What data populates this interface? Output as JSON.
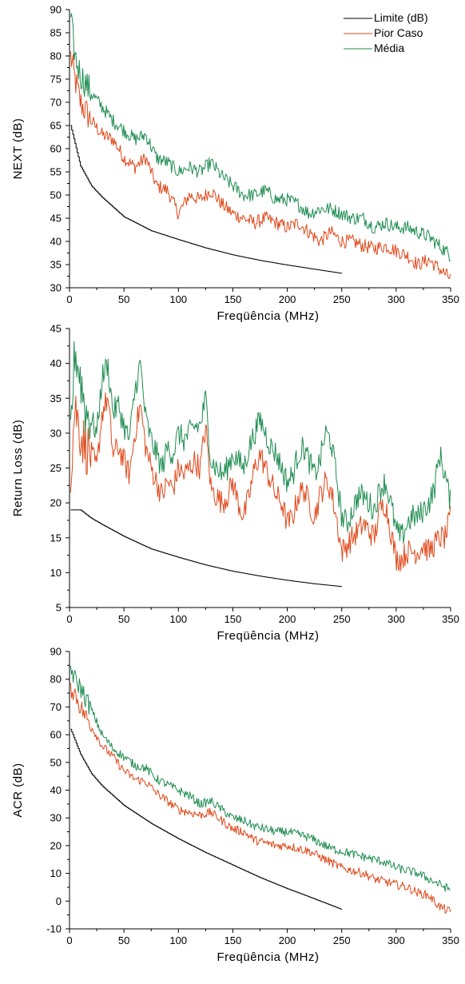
{
  "colors": {
    "limite": "#000000",
    "pior": "#e0481a",
    "media": "#1e8c50",
    "axis": "#000000"
  },
  "legend": {
    "placement": "top-right",
    "items": [
      "Limite (dB)",
      "Pior Caso",
      "Média"
    ]
  },
  "chart_data": [
    {
      "type": "line",
      "title": "",
      "xlabel": "Freqüência (MHz)",
      "ylabel": "NEXT (dB)",
      "xlim": [
        0,
        350
      ],
      "ylim": [
        30,
        90
      ],
      "xticks": [
        "0",
        "50",
        "100",
        "150",
        "200",
        "250",
        "300",
        "350"
      ],
      "yticks": [
        "30",
        "35",
        "40",
        "45",
        "50",
        "55",
        "60",
        "65",
        "70",
        "75",
        "80",
        "85",
        "90"
      ],
      "grid": false,
      "series": [
        {
          "name": "Limite (dB)",
          "x": [
            1,
            10,
            20,
            30,
            50,
            75,
            100,
            125,
            150,
            175,
            200,
            225,
            250
          ],
          "y": [
            65,
            56.3,
            52,
            49.5,
            45.3,
            42.3,
            40.4,
            38.6,
            37.1,
            35.9,
            34.9,
            34,
            33.1
          ]
        },
        {
          "name": "Pior Caso",
          "x": [
            1,
            5,
            10,
            20,
            30,
            40,
            50,
            60,
            70,
            80,
            90,
            100,
            110,
            120,
            130,
            140,
            150,
            160,
            170,
            180,
            190,
            200,
            210,
            220,
            230,
            240,
            250,
            260,
            270,
            280,
            290,
            300,
            310,
            320,
            330,
            340,
            350
          ],
          "y": [
            80,
            75,
            70,
            66,
            63,
            62,
            58,
            56,
            58,
            52,
            51,
            46,
            50,
            49,
            51,
            48,
            46,
            45,
            44,
            45,
            44,
            43,
            44,
            42,
            40,
            42,
            40,
            40,
            39,
            38.5,
            39,
            38,
            37,
            35,
            36,
            34,
            32
          ]
        },
        {
          "name": "Média",
          "x": [
            1,
            5,
            10,
            20,
            30,
            40,
            50,
            60,
            70,
            80,
            90,
            100,
            110,
            120,
            130,
            140,
            150,
            160,
            170,
            180,
            190,
            200,
            210,
            220,
            230,
            240,
            250,
            260,
            270,
            280,
            290,
            300,
            310,
            320,
            330,
            340,
            350
          ],
          "y": [
            88,
            80,
            76,
            72,
            69,
            66,
            64,
            62,
            63,
            58,
            57,
            55,
            56,
            55,
            57,
            54,
            52,
            50,
            50,
            51,
            49,
            49,
            48,
            46,
            47,
            47,
            46,
            45,
            45,
            43,
            44,
            43,
            43,
            42,
            41,
            39,
            37
          ]
        }
      ]
    },
    {
      "type": "line",
      "title": "",
      "xlabel": "Freqüência (MHz)",
      "ylabel": "Return Loss (dB)",
      "xlim": [
        0,
        350
      ],
      "ylim": [
        5,
        45
      ],
      "xticks": [
        "0",
        "50",
        "100",
        "150",
        "200",
        "250",
        "300",
        "350"
      ],
      "yticks": [
        "5",
        "10",
        "15",
        "20",
        "25",
        "30",
        "35",
        "40",
        "45"
      ],
      "grid": false,
      "series": [
        {
          "name": "Limite (dB)",
          "x": [
            1,
            10,
            20,
            30,
            50,
            75,
            100,
            125,
            150,
            175,
            200,
            225,
            250
          ],
          "y": [
            19,
            19,
            17.8,
            16.9,
            15.2,
            13.4,
            12.2,
            11.1,
            10.2,
            9.5,
            8.9,
            8.4,
            8
          ]
        },
        {
          "name": "Pior Caso",
          "x": [
            1,
            5,
            10,
            15,
            20,
            25,
            30,
            35,
            40,
            45,
            50,
            55,
            60,
            65,
            70,
            75,
            80,
            85,
            90,
            95,
            100,
            105,
            110,
            115,
            120,
            125,
            130,
            135,
            140,
            145,
            150,
            155,
            160,
            165,
            170,
            175,
            180,
            185,
            190,
            195,
            200,
            205,
            210,
            215,
            220,
            225,
            230,
            235,
            240,
            245,
            250,
            255,
            260,
            265,
            270,
            275,
            280,
            285,
            290,
            295,
            300,
            305,
            310,
            315,
            320,
            325,
            330,
            335,
            340,
            345,
            350
          ],
          "y": [
            24,
            34,
            30,
            28,
            27,
            25,
            33,
            35,
            27,
            28,
            26,
            24,
            30,
            34,
            28,
            25,
            23,
            21,
            23,
            22,
            25,
            24,
            25,
            26,
            25,
            31,
            22,
            21,
            20,
            21,
            23,
            20,
            18,
            21,
            25,
            27,
            25,
            23,
            21,
            20,
            17,
            18,
            21,
            22,
            20,
            18,
            21,
            23,
            22,
            18,
            13,
            14,
            15,
            16,
            17,
            16,
            15,
            19,
            20,
            16,
            12,
            12,
            13,
            13,
            13,
            14,
            13,
            14,
            15,
            15,
            18
          ]
        },
        {
          "name": "Média",
          "x": [
            1,
            5,
            10,
            15,
            20,
            25,
            30,
            35,
            40,
            45,
            50,
            55,
            60,
            65,
            70,
            75,
            80,
            85,
            90,
            95,
            100,
            105,
            110,
            115,
            120,
            125,
            130,
            135,
            140,
            145,
            150,
            155,
            160,
            165,
            170,
            175,
            180,
            185,
            190,
            195,
            200,
            205,
            210,
            215,
            220,
            225,
            230,
            235,
            240,
            245,
            250,
            255,
            260,
            265,
            270,
            275,
            280,
            285,
            290,
            295,
            300,
            305,
            310,
            315,
            320,
            325,
            330,
            335,
            340,
            345,
            350
          ],
          "y": [
            30,
            42,
            38,
            33,
            32,
            30,
            38,
            40,
            33,
            34,
            31,
            29,
            36,
            40,
            32,
            29,
            27,
            25,
            28,
            27,
            30,
            29,
            30,
            31,
            31,
            35,
            26,
            25,
            24,
            25,
            27,
            26,
            25,
            28,
            30,
            32,
            30,
            28,
            27,
            25,
            23,
            24,
            27,
            28,
            26,
            24,
            26,
            30,
            29,
            24,
            18,
            17,
            19,
            21,
            21,
            20,
            19,
            22,
            23,
            20,
            16,
            15,
            17,
            18,
            18,
            19,
            20,
            22,
            27,
            24,
            20
          ]
        }
      ]
    },
    {
      "type": "line",
      "title": "",
      "xlabel": "Freqüência (MHz)",
      "ylabel": "ACR (dB)",
      "xlim": [
        0,
        350
      ],
      "ylim": [
        -10,
        90
      ],
      "xticks": [
        "0",
        "50",
        "100",
        "150",
        "200",
        "250",
        "300",
        "350"
      ],
      "yticks": [
        "-10",
        "0",
        "10",
        "20",
        "30",
        "40",
        "50",
        "60",
        "70",
        "80",
        "90"
      ],
      "grid": false,
      "series": [
        {
          "name": "Limite (dB)",
          "x": [
            1,
            10,
            20,
            30,
            50,
            75,
            100,
            125,
            150,
            175,
            200,
            225,
            250
          ],
          "y": [
            62,
            53,
            46,
            41.5,
            34.5,
            28,
            22.5,
            17.5,
            13,
            8.5,
            4.5,
            0.8,
            -3
          ]
        },
        {
          "name": "Pior Caso",
          "x": [
            1,
            5,
            10,
            20,
            30,
            40,
            50,
            60,
            70,
            80,
            90,
            100,
            110,
            120,
            130,
            140,
            150,
            160,
            170,
            180,
            190,
            200,
            210,
            220,
            230,
            240,
            250,
            260,
            270,
            280,
            290,
            300,
            310,
            320,
            330,
            340,
            350
          ],
          "y": [
            77,
            75,
            70,
            63,
            56,
            52,
            47,
            44,
            43,
            39,
            36,
            33,
            32,
            31,
            32,
            29,
            26,
            25,
            22,
            21,
            20,
            20,
            19,
            18,
            16,
            14,
            12,
            11,
            10,
            8,
            7,
            6,
            5,
            3,
            2,
            -2,
            -4
          ]
        },
        {
          "name": "Média",
          "x": [
            1,
            5,
            10,
            20,
            30,
            40,
            50,
            60,
            70,
            80,
            90,
            100,
            110,
            120,
            130,
            140,
            150,
            160,
            170,
            180,
            190,
            200,
            210,
            220,
            230,
            240,
            250,
            260,
            270,
            280,
            290,
            300,
            310,
            320,
            330,
            340,
            350
          ],
          "y": [
            84,
            80,
            77,
            69,
            60,
            55,
            52,
            49,
            48,
            44,
            42,
            40,
            38,
            35,
            36,
            33,
            30,
            29,
            27,
            26,
            25,
            25,
            24,
            23,
            21,
            19,
            18,
            17,
            16,
            15,
            14,
            12,
            11,
            10,
            8,
            6,
            4
          ]
        }
      ]
    }
  ]
}
